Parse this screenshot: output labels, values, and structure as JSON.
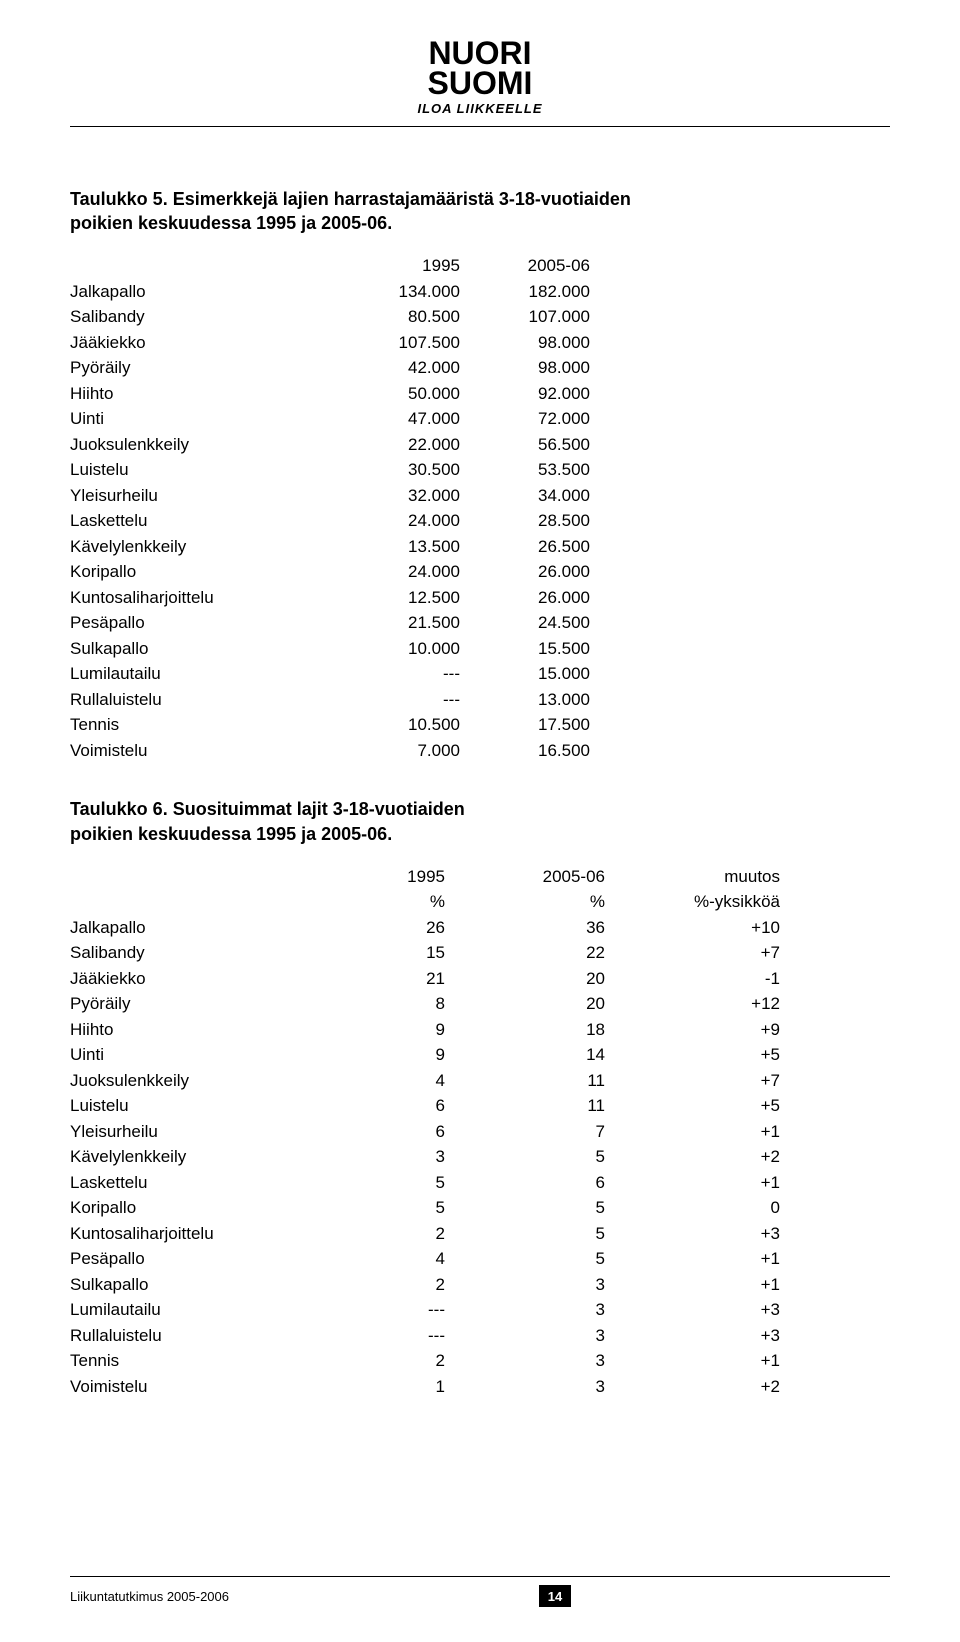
{
  "logo": {
    "line1": "NUORI",
    "line2": "SUOMI",
    "tagline": "ILOA LIIKKEELLE"
  },
  "table5": {
    "title_line1": "Taulukko 5. Esimerkkejä lajien harrastajamääristä 3-18-vuotiaiden",
    "title_line2": "poikien keskuudessa 1995 ja 2005-06.",
    "col1": "1995",
    "col2": "2005-06",
    "rows": [
      {
        "label": "Jalkapallo",
        "c1": "134.000",
        "c2": "182.000"
      },
      {
        "label": "Salibandy",
        "c1": "80.500",
        "c2": "107.000"
      },
      {
        "label": "Jääkiekko",
        "c1": "107.500",
        "c2": "98.000"
      },
      {
        "label": "Pyöräily",
        "c1": "42.000",
        "c2": "98.000"
      },
      {
        "label": "Hiihto",
        "c1": "50.000",
        "c2": "92.000"
      },
      {
        "label": "Uinti",
        "c1": "47.000",
        "c2": "72.000"
      },
      {
        "label": "Juoksulenkkeily",
        "c1": "22.000",
        "c2": "56.500"
      },
      {
        "label": "Luistelu",
        "c1": "30.500",
        "c2": "53.500"
      },
      {
        "label": "Yleisurheilu",
        "c1": "32.000",
        "c2": "34.000"
      },
      {
        "label": "Laskettelu",
        "c1": "24.000",
        "c2": "28.500"
      },
      {
        "label": "Kävelylenkkeily",
        "c1": "13.500",
        "c2": "26.500"
      },
      {
        "label": "Koripallo",
        "c1": "24.000",
        "c2": "26.000"
      },
      {
        "label": "Kuntosaliharjoittelu",
        "c1": "12.500",
        "c2": "26.000"
      },
      {
        "label": "Pesäpallo",
        "c1": "21.500",
        "c2": "24.500"
      },
      {
        "label": "Sulkapallo",
        "c1": "10.000",
        "c2": "15.500"
      },
      {
        "label": "Lumilautailu",
        "c1": "---",
        "c2": "15.000"
      },
      {
        "label": "Rullaluistelu",
        "c1": "---",
        "c2": "13.000"
      },
      {
        "label": "Tennis",
        "c1": "10.500",
        "c2": "17.500"
      },
      {
        "label": "Voimistelu",
        "c1": "7.000",
        "c2": "16.500"
      }
    ]
  },
  "table6": {
    "title_line1": "Taulukko 6. Suosituimmat lajit 3-18-vuotiaiden",
    "title_line2": "poikien keskuudessa 1995 ja 2005-06.",
    "h1": "1995",
    "h2": "2005-06",
    "h3": "muutos",
    "sub1": "%",
    "sub2": "%",
    "sub3": "%-yksikköä",
    "rows": [
      {
        "label": "Jalkapallo",
        "c1": "26",
        "c2": "36",
        "c3": "+10"
      },
      {
        "label": "Salibandy",
        "c1": "15",
        "c2": "22",
        "c3": "+7"
      },
      {
        "label": "Jääkiekko",
        "c1": "21",
        "c2": "20",
        "c3": "-1"
      },
      {
        "label": "Pyöräily",
        "c1": "8",
        "c2": "20",
        "c3": "+12"
      },
      {
        "label": "Hiihto",
        "c1": "9",
        "c2": "18",
        "c3": "+9"
      },
      {
        "label": "Uinti",
        "c1": "9",
        "c2": "14",
        "c3": "+5"
      },
      {
        "label": "Juoksulenkkeily",
        "c1": "4",
        "c2": "11",
        "c3": "+7"
      },
      {
        "label": "Luistelu",
        "c1": "6",
        "c2": "11",
        "c3": "+5"
      },
      {
        "label": "Yleisurheilu",
        "c1": "6",
        "c2": "7",
        "c3": "+1"
      },
      {
        "label": "Kävelylenkkeily",
        "c1": "3",
        "c2": "5",
        "c3": "+2"
      },
      {
        "label": "Laskettelu",
        "c1": "5",
        "c2": "6",
        "c3": "+1"
      },
      {
        "label": "Koripallo",
        "c1": "5",
        "c2": "5",
        "c3": "0"
      },
      {
        "label": "Kuntosaliharjoittelu",
        "c1": "2",
        "c2": "5",
        "c3": "+3"
      },
      {
        "label": "Pesäpallo",
        "c1": "4",
        "c2": "5",
        "c3": "+1"
      },
      {
        "label": "Sulkapallo",
        "c1": "2",
        "c2": "3",
        "c3": "+1"
      },
      {
        "label": "Lumilautailu",
        "c1": "---",
        "c2": "3",
        "c3": "+3"
      },
      {
        "label": "Rullaluistelu",
        "c1": "---",
        "c2": "3",
        "c3": "+3"
      },
      {
        "label": "Tennis",
        "c1": "2",
        "c2": "3",
        "c3": "+1"
      },
      {
        "label": "Voimistelu",
        "c1": "1",
        "c2": "3",
        "c3": "+2"
      }
    ]
  },
  "footer": {
    "label": "Liikuntatutkimus 2005-2006",
    "page": "14"
  }
}
